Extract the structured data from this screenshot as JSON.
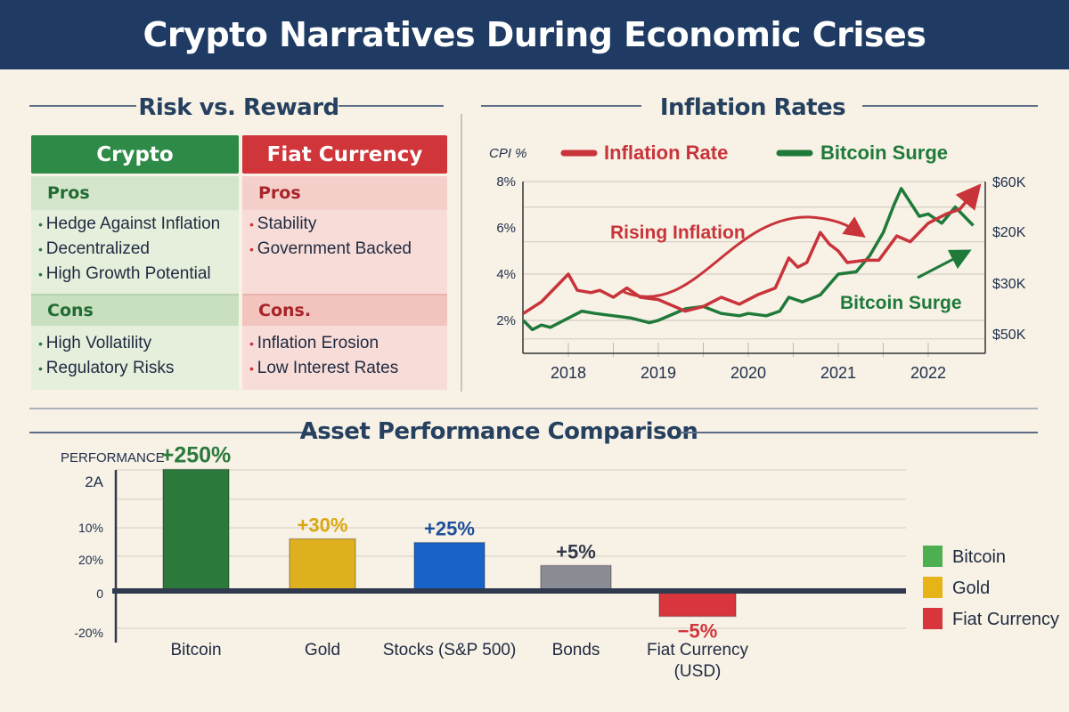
{
  "title": "Crypto Narratives During Economic Crises",
  "risk_reward": {
    "title": "Risk vs. Reward",
    "columns": [
      {
        "header": "Crypto",
        "pros_label": "Pros",
        "pros": [
          "Hedge Against Inflation",
          "Decentralized",
          "High Growth Potential"
        ],
        "cons_label": "Cons",
        "cons": [
          "High Vollatility",
          "Regulatory Risks"
        ]
      },
      {
        "header": "Fiat Currency",
        "pros_label": "Pros",
        "pros": [
          "Stability",
          "Government Backed"
        ],
        "cons_label": "Cons.",
        "cons": [
          "Inflation Erosion",
          "Low Interest Rates"
        ]
      }
    ],
    "colors": {
      "crypto": "#2e8b47",
      "fiat": "#d0353a"
    }
  },
  "chart_data": [
    {
      "type": "line",
      "title": "Inflation Rates",
      "ylabel": "CPI %",
      "y_ticks": [
        "8%",
        "6%",
        "4%",
        "2%"
      ],
      "ylim": [
        0.8,
        8
      ],
      "y2_ticks": [
        "$60K",
        "$20K",
        "$30K",
        "$50K"
      ],
      "x_ticks": [
        "2018",
        "2019",
        "2020",
        "2021",
        "2022"
      ],
      "xlim": [
        2017.5,
        2022.6
      ],
      "legend": "top",
      "annotations": [
        {
          "text": "Rising Inflation",
          "color": "#c8343a"
        },
        {
          "text": "Bitcoin Surge",
          "color": "#1f7a3a"
        }
      ],
      "series": [
        {
          "name": "Inflation Rate",
          "color": "#c8343a",
          "points": [
            [
              2017.5,
              2.3
            ],
            [
              2017.7,
              2.8
            ],
            [
              2017.85,
              3.4
            ],
            [
              2018,
              4.0
            ],
            [
              2018.1,
              3.3
            ],
            [
              2018.25,
              3.2
            ],
            [
              2018.35,
              3.3
            ],
            [
              2018.5,
              3.0
            ],
            [
              2018.65,
              3.4
            ],
            [
              2018.8,
              3.0
            ],
            [
              2019.0,
              2.9
            ],
            [
              2019.3,
              2.4
            ],
            [
              2019.5,
              2.6
            ],
            [
              2019.7,
              3.0
            ],
            [
              2019.9,
              2.7
            ],
            [
              2020.1,
              3.1
            ],
            [
              2020.3,
              3.4
            ],
            [
              2020.45,
              4.7
            ],
            [
              2020.55,
              4.3
            ],
            [
              2020.65,
              4.5
            ],
            [
              2020.8,
              5.8
            ],
            [
              2020.9,
              5.3
            ],
            [
              2021.0,
              5.0
            ],
            [
              2021.1,
              4.5
            ],
            [
              2021.3,
              4.6
            ],
            [
              2021.45,
              4.6
            ],
            [
              2021.65,
              5.65
            ],
            [
              2021.8,
              5.4
            ],
            [
              2022.0,
              6.2
            ],
            [
              2022.2,
              6.6
            ],
            [
              2022.35,
              6.8
            ],
            [
              2022.5,
              7.5
            ]
          ]
        },
        {
          "name": "Bitcoin Surge",
          "color": "#1f7a3a",
          "points": [
            [
              2017.5,
              2.0
            ],
            [
              2017.6,
              1.6
            ],
            [
              2017.7,
              1.8
            ],
            [
              2017.8,
              1.7
            ],
            [
              2018.0,
              2.1
            ],
            [
              2018.15,
              2.4
            ],
            [
              2018.3,
              2.3
            ],
            [
              2018.5,
              2.2
            ],
            [
              2018.7,
              2.1
            ],
            [
              2018.9,
              1.9
            ],
            [
              2019.0,
              2.0
            ],
            [
              2019.3,
              2.5
            ],
            [
              2019.5,
              2.6
            ],
            [
              2019.7,
              2.3
            ],
            [
              2019.9,
              2.2
            ],
            [
              2020.0,
              2.3
            ],
            [
              2020.2,
              2.2
            ],
            [
              2020.35,
              2.4
            ],
            [
              2020.45,
              3.0
            ],
            [
              2020.6,
              2.8
            ],
            [
              2020.8,
              3.1
            ],
            [
              2021.0,
              4.0
            ],
            [
              2021.2,
              4.1
            ],
            [
              2021.35,
              4.8
            ],
            [
              2021.5,
              5.8
            ],
            [
              2021.62,
              7.0
            ],
            [
              2021.7,
              7.7
            ],
            [
              2021.9,
              6.5
            ],
            [
              2022.0,
              6.6
            ],
            [
              2022.15,
              6.2
            ],
            [
              2022.3,
              6.9
            ],
            [
              2022.5,
              6.1
            ]
          ]
        }
      ]
    },
    {
      "type": "bar",
      "title": "Asset Performance Comparison",
      "ylabel": "Performance",
      "y_ticks": [
        "2A",
        "10%",
        "20%",
        "0",
        "-20%"
      ],
      "categories": [
        "Bitcoin",
        "Gold",
        "Stocks (S&P 500)",
        "Bonds",
        "Fiat Currency (USD)"
      ],
      "category_lines": [
        [
          "Bitcoin"
        ],
        [
          "Gold"
        ],
        [
          "Stocks (S&P 500)"
        ],
        [
          "Bonds"
        ],
        [
          "Fiat Currency",
          "(USD)"
        ]
      ],
      "values": [
        250,
        30,
        25,
        5,
        -5
      ],
      "data_labels": [
        "+250%",
        "+30%",
        "+25%",
        "+5%",
        "−5%"
      ],
      "colors": [
        "#2b7a3c",
        "#e0b11f",
        "#1763c8",
        "#8a8d94",
        "#d8363c"
      ],
      "label_colors": [
        "#2b7a3c",
        "#d9a70f",
        "#1d4f9a",
        "#33394a",
        "#d0353a"
      ],
      "legend": {
        "position": "right",
        "items": [
          {
            "label": "Bitcoin",
            "color": "#4caf50"
          },
          {
            "label": "Gold",
            "color": "#e6b416"
          },
          {
            "label": "Fiat Currency",
            "color": "#d8363c"
          }
        ]
      }
    }
  ]
}
